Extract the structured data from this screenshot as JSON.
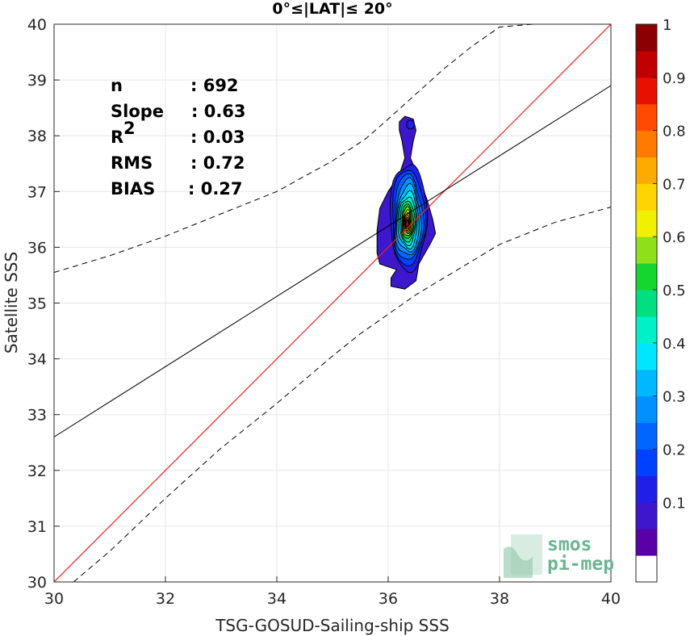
{
  "chart_data": {
    "type": "scatter",
    "title": "0°≤|LAT|≤ 20°",
    "xlabel": "TSG-GOSUD-Sailing-ship SSS",
    "ylabel": "Satellite SSS",
    "xlim": [
      30,
      40
    ],
    "ylim": [
      30,
      40
    ],
    "xticks": [
      30,
      32,
      34,
      36,
      38,
      40
    ],
    "yticks": [
      30,
      31,
      32,
      33,
      34,
      35,
      36,
      37,
      38,
      39,
      40
    ],
    "grid": true,
    "stats": [
      {
        "key": "n",
        "sup": "",
        "value": ": 692"
      },
      {
        "key": "Slope",
        "sup": "",
        "value": ": 0.63"
      },
      {
        "key": "R",
        "sup": "2",
        "value": ": 0.03"
      },
      {
        "key": "RMS",
        "sup": "",
        "value": ": 0.72"
      },
      {
        "key": "BIAS",
        "sup": "",
        "value": ": 0.27"
      }
    ],
    "identity_line": {
      "x": [
        30,
        40
      ],
      "y": [
        30,
        40
      ],
      "color": "#e8231f"
    },
    "regression_line": {
      "x": [
        30,
        40
      ],
      "y": [
        32.6,
        38.9
      ],
      "color": "#000000"
    },
    "upper_bound": {
      "x": [
        30,
        31,
        32,
        33,
        34,
        35,
        35.6,
        36,
        36.5,
        37,
        37.5,
        38,
        38.6
      ],
      "y": [
        35.55,
        35.85,
        36.2,
        36.6,
        37.0,
        37.55,
        37.95,
        38.3,
        38.75,
        39.2,
        39.6,
        39.95,
        40.0
      ]
    },
    "lower_bound": {
      "x": [
        30.35,
        31,
        32,
        33,
        34,
        35,
        35.5,
        36,
        36.5,
        37,
        37.5,
        38,
        38.5,
        39,
        40
      ],
      "y": [
        30.0,
        30.55,
        31.5,
        32.4,
        33.2,
        34.05,
        34.45,
        34.8,
        35.15,
        35.45,
        35.75,
        36.05,
        36.25,
        36.45,
        36.72
      ]
    },
    "density_contours": {
      "center": [
        36.37,
        36.42
      ],
      "levels": [
        0.05,
        0.1,
        0.15,
        0.2,
        0.25,
        0.3,
        0.35,
        0.4,
        0.45,
        0.5,
        0.55,
        0.6,
        0.65,
        0.7,
        0.75,
        0.8,
        0.85,
        0.9,
        0.95
      ],
      "outer_polygon": [
        [
          36.2,
          38.25
        ],
        [
          36.3,
          38.35
        ],
        [
          36.45,
          38.3
        ],
        [
          36.5,
          38.1
        ],
        [
          36.45,
          37.9
        ],
        [
          36.4,
          37.6
        ],
        [
          36.55,
          37.25
        ],
        [
          36.7,
          36.85
        ],
        [
          36.8,
          36.5
        ],
        [
          36.85,
          36.25
        ],
        [
          36.75,
          36.05
        ],
        [
          36.55,
          35.7
        ],
        [
          36.5,
          35.4
        ],
        [
          36.3,
          35.25
        ],
        [
          36.05,
          35.3
        ],
        [
          36.05,
          35.45
        ],
        [
          36.15,
          35.6
        ],
        [
          35.85,
          35.7
        ],
        [
          35.8,
          35.9
        ],
        [
          35.8,
          36.3
        ],
        [
          35.85,
          36.7
        ],
        [
          36.0,
          37.0
        ],
        [
          36.2,
          37.3
        ],
        [
          36.3,
          37.6
        ],
        [
          36.25,
          37.9
        ],
        [
          36.2,
          38.1
        ]
      ],
      "inner_radii": [
        0.78,
        0.7,
        0.62,
        0.55,
        0.48,
        0.41,
        0.35,
        0.3,
        0.25,
        0.21,
        0.17,
        0.14,
        0.11,
        0.085,
        0.065,
        0.045
      ],
      "hole": [
        36.4,
        38.2
      ]
    },
    "colorbar": {
      "range": [
        0,
        1
      ],
      "ticks": [
        0.1,
        0.2,
        0.3,
        0.4,
        0.5,
        0.6,
        0.7,
        0.8,
        0.9,
        1
      ],
      "tick_labels": [
        "0.1",
        "0.2",
        "0.3",
        "0.4",
        "0.5",
        "0.6",
        "0.7",
        "0.8",
        "0.9",
        "1"
      ],
      "colors": [
        "#ffffff",
        "#5a00a8",
        "#3c17cc",
        "#1f1fe8",
        "#0040ff",
        "#0066ff",
        "#0090ff",
        "#00b8ff",
        "#00e6ff",
        "#00f0c8",
        "#00e080",
        "#14d62e",
        "#8ee01a",
        "#f0f000",
        "#ffd400",
        "#ffaa00",
        "#ff7a00",
        "#ff4a00",
        "#e81000",
        "#c00000",
        "#8b0000"
      ]
    }
  },
  "watermark": {
    "line1": "smos",
    "line2": "pi-mep"
  }
}
